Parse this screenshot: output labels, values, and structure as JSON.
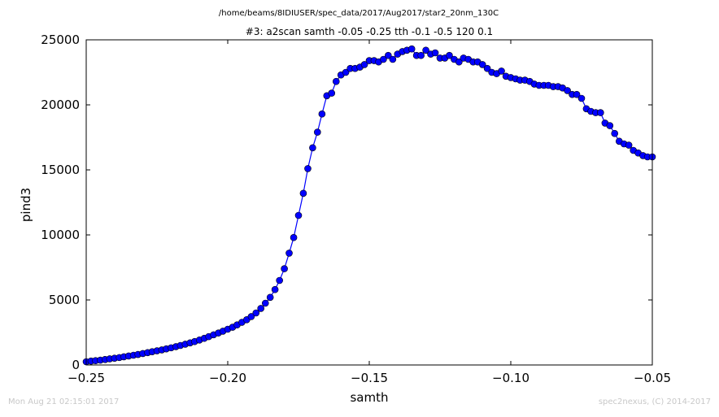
{
  "figure": {
    "suptitle": "/home/beams/8IDIUSER/spec_data/2017/Aug2017/star2_20nm_130C",
    "footer_left": "Mon Aug 21 02:15:01 2017",
    "footer_right": "spec2nexus, (C) 2014-2017"
  },
  "chart_data": {
    "type": "line",
    "title": "#3: a2scan  samth -0.05 -0.25  tth -0.1 -0.5  120 0.1",
    "xlabel": "samth",
    "ylabel": "pind3",
    "xlim": [
      -0.25,
      -0.05
    ],
    "ylim": [
      0,
      25000
    ],
    "xticks": [
      -0.25,
      -0.2,
      -0.15,
      -0.1,
      -0.05
    ],
    "xtick_labels": [
      "−0.25",
      "−0.20",
      "−0.15",
      "−0.10",
      "−0.05"
    ],
    "yticks": [
      0,
      5000,
      10000,
      15000,
      20000,
      25000
    ],
    "ytick_labels": [
      "0",
      "5000",
      "10000",
      "15000",
      "20000",
      "25000"
    ],
    "grid": false,
    "marker": "circle",
    "series_color": "#0000ff",
    "marker_edge_color": "#000000",
    "series": [
      {
        "x": [
          -0.25,
          -0.2483,
          -0.2467,
          -0.245,
          -0.2433,
          -0.2417,
          -0.24,
          -0.2383,
          -0.2367,
          -0.235,
          -0.2333,
          -0.2317,
          -0.23,
          -0.2283,
          -0.2267,
          -0.225,
          -0.2233,
          -0.2217,
          -0.22,
          -0.2183,
          -0.2167,
          -0.215,
          -0.2133,
          -0.2117,
          -0.21,
          -0.2083,
          -0.2067,
          -0.205,
          -0.2033,
          -0.2017,
          -0.2,
          -0.1983,
          -0.1967,
          -0.195,
          -0.1933,
          -0.1917,
          -0.19,
          -0.1883,
          -0.1867,
          -0.185,
          -0.1833,
          -0.1817,
          -0.18,
          -0.1783,
          -0.1767,
          -0.175,
          -0.1733,
          -0.1717,
          -0.17,
          -0.1683,
          -0.1667,
          -0.165,
          -0.1633,
          -0.1617,
          -0.16,
          -0.1583,
          -0.1567,
          -0.155,
          -0.1533,
          -0.1517,
          -0.15,
          -0.1483,
          -0.1467,
          -0.145,
          -0.1433,
          -0.1417,
          -0.14,
          -0.1383,
          -0.1367,
          -0.135,
          -0.1333,
          -0.1317,
          -0.13,
          -0.1283,
          -0.1267,
          -0.125,
          -0.1233,
          -0.1217,
          -0.12,
          -0.1183,
          -0.1167,
          -0.115,
          -0.1133,
          -0.1117,
          -0.11,
          -0.1083,
          -0.1067,
          -0.105,
          -0.1033,
          -0.1017,
          -0.1,
          -0.0983,
          -0.0967,
          -0.095,
          -0.0933,
          -0.0917,
          -0.09,
          -0.0883,
          -0.0867,
          -0.085,
          -0.0833,
          -0.0817,
          -0.08,
          -0.0783,
          -0.0767,
          -0.075,
          -0.0733,
          -0.0717,
          -0.07,
          -0.0683,
          -0.0667,
          -0.065,
          -0.0633,
          -0.0617,
          -0.06,
          -0.0583,
          -0.0567,
          -0.055,
          -0.0533,
          -0.0517,
          -0.05
        ],
        "y": [
          250,
          300,
          330,
          370,
          420,
          470,
          520,
          570,
          630,
          690,
          750,
          810,
          880,
          950,
          1020,
          1090,
          1160,
          1240,
          1320,
          1410,
          1500,
          1600,
          1700,
          1800,
          1920,
          2050,
          2180,
          2320,
          2460,
          2600,
          2750,
          2900,
          3080,
          3280,
          3480,
          3720,
          4000,
          4350,
          4750,
          5200,
          5800,
          6500,
          7400,
          8600,
          9800,
          11500,
          13200,
          15100,
          16700,
          17900,
          19300,
          20700,
          20900,
          21800,
          22300,
          22500,
          22800,
          22800,
          22900,
          23100,
          23400,
          23400,
          23300,
          23500,
          23800,
          23500,
          23900,
          24100,
          24200,
          24300,
          23800,
          23800,
          24200,
          23900,
          24000,
          23600,
          23600,
          23800,
          23500,
          23300,
          23600,
          23500,
          23300,
          23300,
          23100,
          22800,
          22500,
          22400,
          22600,
          22200,
          22100,
          22000,
          21900,
          21900,
          21800,
          21600,
          21500,
          21500,
          21500,
          21400,
          21400,
          21300,
          21100,
          20800,
          20800,
          20500,
          19700,
          19500,
          19400,
          19400,
          18600,
          18400,
          17800,
          17200,
          17000,
          16900,
          16500,
          16300,
          16100,
          16000,
          16000
        ]
      }
    ]
  }
}
